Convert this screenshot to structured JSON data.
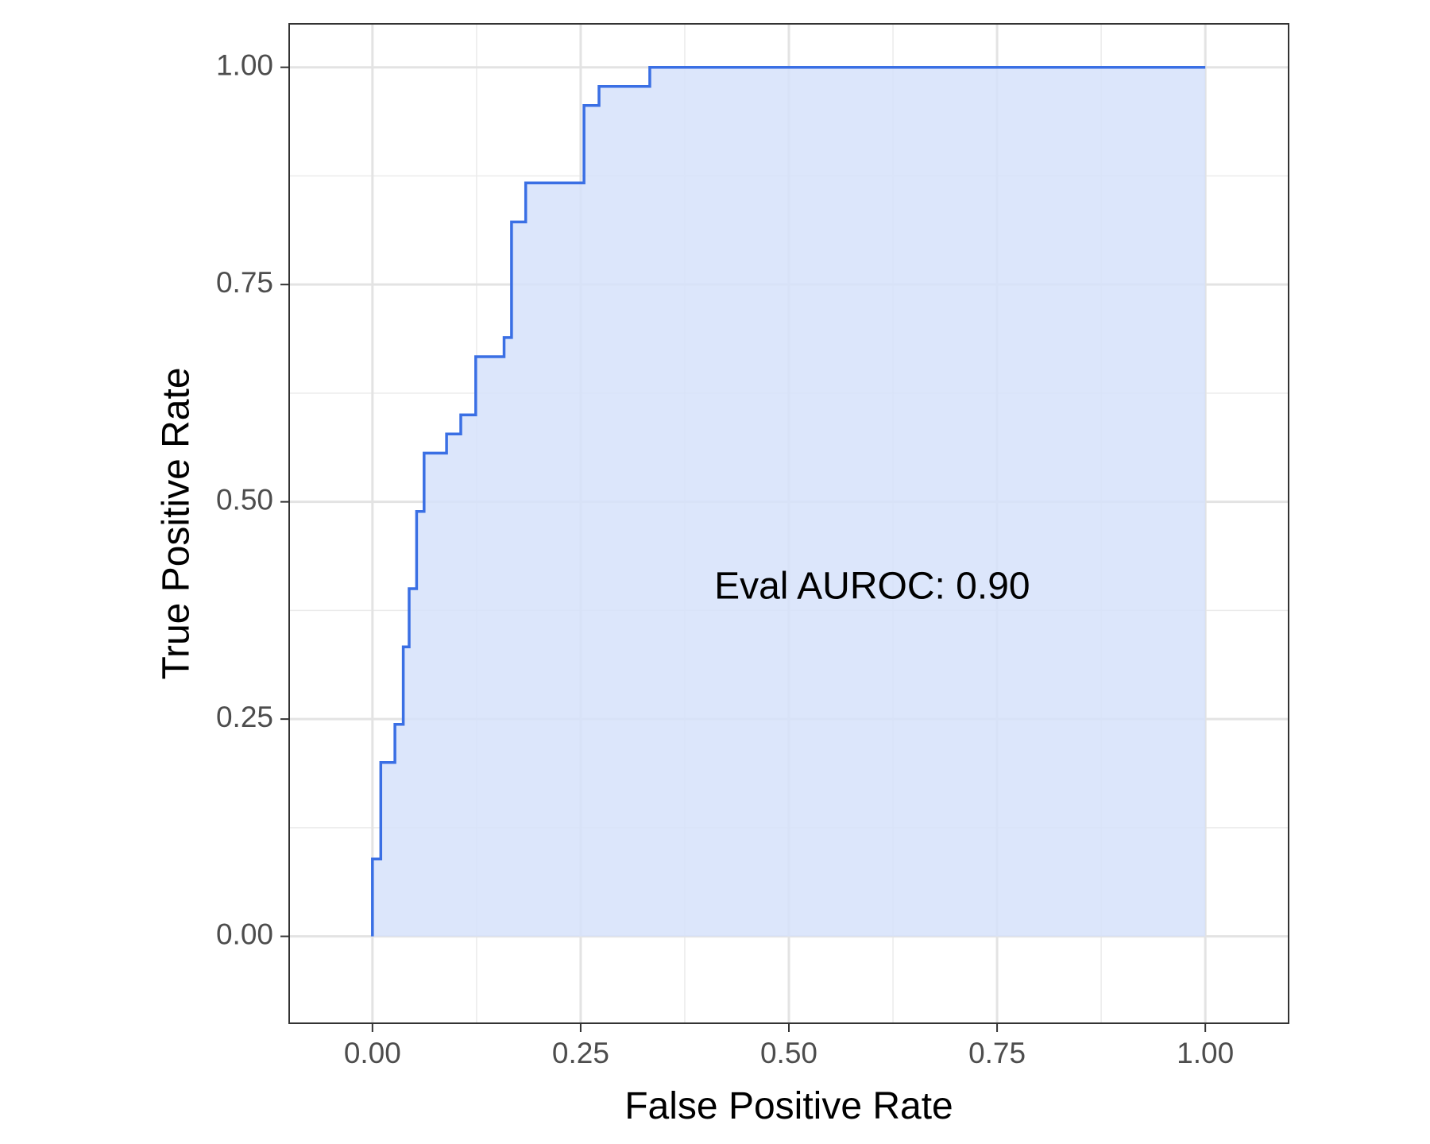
{
  "chart_data": {
    "type": "line",
    "xlabel": "False Positive Rate",
    "ylabel": "True Positive Rate",
    "xlim": [
      -0.1,
      1.1
    ],
    "ylim": [
      -0.1,
      1.05
    ],
    "x_ticks": [
      0.0,
      0.25,
      0.5,
      0.75,
      1.0
    ],
    "x_tick_labels": [
      "0.00",
      "0.25",
      "0.50",
      "0.75",
      "1.00"
    ],
    "y_ticks": [
      0.0,
      0.25,
      0.5,
      0.75,
      1.0
    ],
    "y_tick_labels": [
      "0.00",
      "0.25",
      "0.50",
      "0.75",
      "1.00"
    ],
    "grid": true,
    "series": [
      {
        "line_color": "#3a6fe4",
        "fill_color": "#d6e2fa",
        "points": [
          [
            0.0,
            0.0
          ],
          [
            0.0,
            0.089
          ],
          [
            0.01,
            0.089
          ],
          [
            0.01,
            0.2
          ],
          [
            0.027,
            0.2
          ],
          [
            0.027,
            0.244
          ],
          [
            0.037,
            0.244
          ],
          [
            0.037,
            0.333
          ],
          [
            0.044,
            0.333
          ],
          [
            0.044,
            0.4
          ],
          [
            0.053,
            0.4
          ],
          [
            0.053,
            0.489
          ],
          [
            0.062,
            0.489
          ],
          [
            0.062,
            0.556
          ],
          [
            0.089,
            0.556
          ],
          [
            0.089,
            0.578
          ],
          [
            0.106,
            0.578
          ],
          [
            0.106,
            0.6
          ],
          [
            0.124,
            0.6
          ],
          [
            0.124,
            0.667
          ],
          [
            0.158,
            0.667
          ],
          [
            0.158,
            0.689
          ],
          [
            0.167,
            0.689
          ],
          [
            0.167,
            0.822
          ],
          [
            0.184,
            0.822
          ],
          [
            0.184,
            0.867
          ],
          [
            0.254,
            0.867
          ],
          [
            0.254,
            0.956
          ],
          [
            0.272,
            0.956
          ],
          [
            0.272,
            0.978
          ],
          [
            0.333,
            0.978
          ],
          [
            0.333,
            1.0
          ],
          [
            1.0,
            1.0
          ]
        ]
      }
    ],
    "annotations": [
      {
        "text": "Eval AUROC: 0.90",
        "x": 0.6,
        "y": 0.4
      }
    ]
  }
}
